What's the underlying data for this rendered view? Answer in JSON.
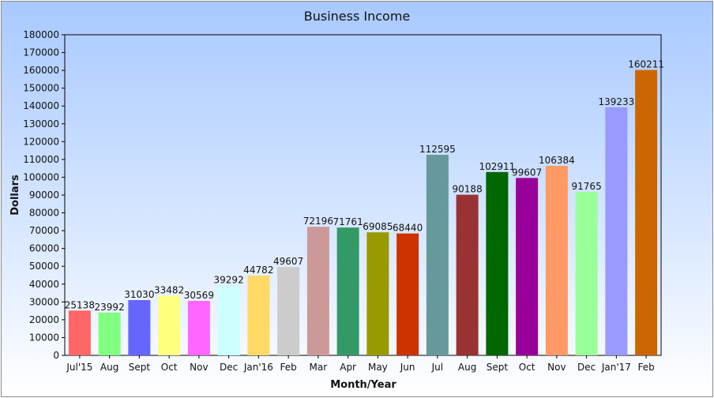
{
  "chart_data": {
    "type": "bar",
    "title": "Business Income",
    "xlabel": "Month/Year",
    "ylabel": "Dollars",
    "ylim": [
      0,
      180000
    ],
    "ytick_step": 10000,
    "grid": false,
    "categories": [
      "Jul'15",
      "Aug",
      "Sept",
      "Oct",
      "Nov",
      "Dec",
      "Jan'16",
      "Feb",
      "Mar",
      "Apr",
      "May",
      "Jun",
      "Jul",
      "Aug",
      "Sept",
      "Oct",
      "Nov",
      "Dec",
      "Jan'17",
      "Feb"
    ],
    "values": [
      25138,
      23992,
      31030,
      33482,
      30569,
      39292,
      44782,
      49607,
      72196,
      71761,
      69085,
      68440,
      112595,
      90188,
      102911,
      99607,
      106384,
      91765,
      139233,
      160211
    ],
    "colors": [
      "#ff6666",
      "#80ff80",
      "#6666ff",
      "#ffff80",
      "#ff66ff",
      "#ccffff",
      "#ffd966",
      "#cccccc",
      "#cc9999",
      "#339966",
      "#999900",
      "#cc3300",
      "#669999",
      "#993333",
      "#006600",
      "#990099",
      "#ff9966",
      "#99ff99",
      "#9999ff",
      "#cc6600"
    ],
    "data_labels": true
  }
}
